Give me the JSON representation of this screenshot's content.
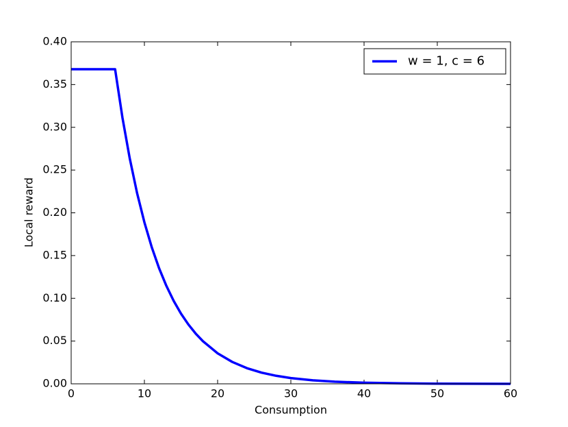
{
  "chart_data": {
    "type": "line",
    "x_label": "Consumption",
    "y_label": "Local reward",
    "x": [
      0,
      6,
      7,
      8,
      9,
      10,
      11,
      12,
      13,
      14,
      15,
      16,
      17,
      18,
      20,
      22,
      24,
      26,
      28,
      30,
      33,
      36,
      40,
      45,
      50,
      55,
      60
    ],
    "series": [
      {
        "name": "w = 1, c = 6",
        "color": "#0000ff",
        "values": [
          0.3679,
          0.3679,
          0.3114,
          0.2636,
          0.2231,
          0.1889,
          0.1599,
          0.1353,
          0.1146,
          0.097,
          0.0821,
          0.0695,
          0.0588,
          0.0498,
          0.0357,
          0.0256,
          0.0183,
          0.0131,
          0.0094,
          0.0067,
          0.0041,
          0.0025,
          0.0013,
          0.0006,
          0.0002,
          0.0001,
          0.0
        ]
      }
    ],
    "xlim": [
      0,
      60
    ],
    "xticks": [
      0,
      10,
      20,
      30,
      40,
      50,
      60
    ],
    "ylim": [
      0,
      0.4
    ],
    "yticks": [
      {
        "value": 0,
        "label": "0.00"
      },
      {
        "value": 0.05,
        "label": "0.05"
      },
      {
        "value": 0.1,
        "label": "0.10"
      },
      {
        "value": 0.15,
        "label": "0.15"
      },
      {
        "value": 0.2,
        "label": "0.20"
      },
      {
        "value": 0.25,
        "label": "0.25"
      },
      {
        "value": 0.3,
        "label": "0.30"
      },
      {
        "value": 0.35,
        "label": "0.35"
      },
      {
        "value": 0.4,
        "label": "0.40"
      }
    ],
    "legend": "upper right",
    "grid": false
  }
}
